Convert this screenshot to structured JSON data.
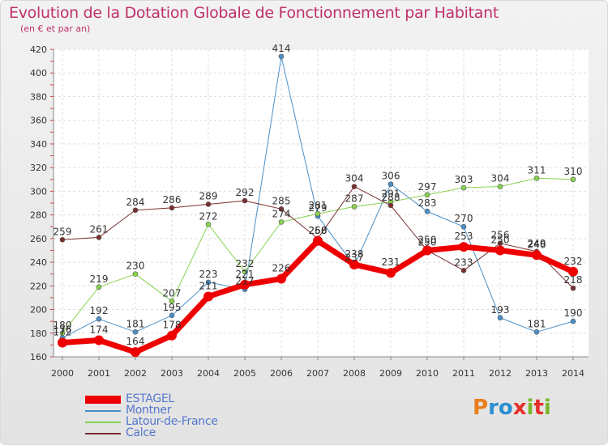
{
  "title": "Evolution de la Dotation Globale de Fonctionnement par Habitant",
  "subtitle": "(en € et par an)",
  "logo": {
    "letters": [
      "P",
      "r",
      "o",
      "x",
      "i",
      "t",
      "i"
    ],
    "colors": [
      "#e87e1c",
      "#2a8fcf",
      "#2a8fcf",
      "#e5302a",
      "#7ab82b",
      "#e5302a",
      "#7ab82b"
    ]
  },
  "chart_data": {
    "type": "line",
    "title": "Evolution de la Dotation Globale de Fonctionnement par Habitant",
    "subtitle": "(en € et par an)",
    "xlabel": "",
    "ylabel": "",
    "x": [
      "2000",
      "2001",
      "2002",
      "2003",
      "2004",
      "2005",
      "2006",
      "2007",
      "2008",
      "2009",
      "2010",
      "2011",
      "2012",
      "2013",
      "2014"
    ],
    "ylim": [
      160,
      420
    ],
    "yticks": [
      "160",
      "180",
      "200",
      "220",
      "240",
      "260",
      "280",
      "300",
      "320",
      "340",
      "360",
      "380",
      "400",
      "420"
    ],
    "grid": true,
    "legend_position": "bottom-left",
    "series": [
      {
        "name": "ESTAGEL",
        "color": "#ee0000",
        "width": 7,
        "marker": 6,
        "values": [
          172,
          174,
          164,
          178,
          211,
          221,
          226,
          258,
          238,
          231,
          250,
          253,
          250,
          246,
          232
        ],
        "labels": [
          "172",
          "174",
          "164",
          "178",
          "211",
          "221",
          "226",
          "258",
          "238",
          "231",
          "250",
          "253",
          "250",
          "246",
          "232"
        ]
      },
      {
        "name": "Montner",
        "color": "#4a8fc8",
        "width": 1,
        "marker": 3,
        "values": [
          176,
          192,
          181,
          195,
          223,
          217,
          414,
          279,
          237,
          306,
          283,
          270,
          193,
          181,
          190
        ],
        "labels": [
          "176",
          "192",
          "181",
          "195",
          "223",
          "217",
          "414",
          "279",
          "237",
          "306",
          "283",
          "270",
          "193",
          "181",
          "190"
        ]
      },
      {
        "name": "Latour-de-France",
        "color": "#88d24f",
        "width": 1,
        "marker": 3,
        "values": [
          180,
          219,
          230,
          207,
          272,
          232,
          274,
          281,
          287,
          291,
          297,
          303,
          304,
          311,
          310
        ],
        "labels": [
          "180",
          "219",
          "230",
          "207",
          "272",
          "232",
          "274",
          "281",
          "287",
          "291",
          "297",
          "303",
          "304",
          "311",
          "310"
        ]
      },
      {
        "name": "Calce",
        "color": "#7a2e2e",
        "width": 1,
        "marker": 3,
        "values": [
          259,
          261,
          284,
          286,
          289,
          292,
          285,
          260,
          304,
          288,
          250,
          233,
          256,
          249,
          218
        ],
        "labels": [
          "259",
          "261",
          "284",
          "286",
          "289",
          "292",
          "285",
          "260",
          "304",
          "288",
          "250",
          "233",
          "256",
          "249",
          "218"
        ]
      }
    ]
  }
}
